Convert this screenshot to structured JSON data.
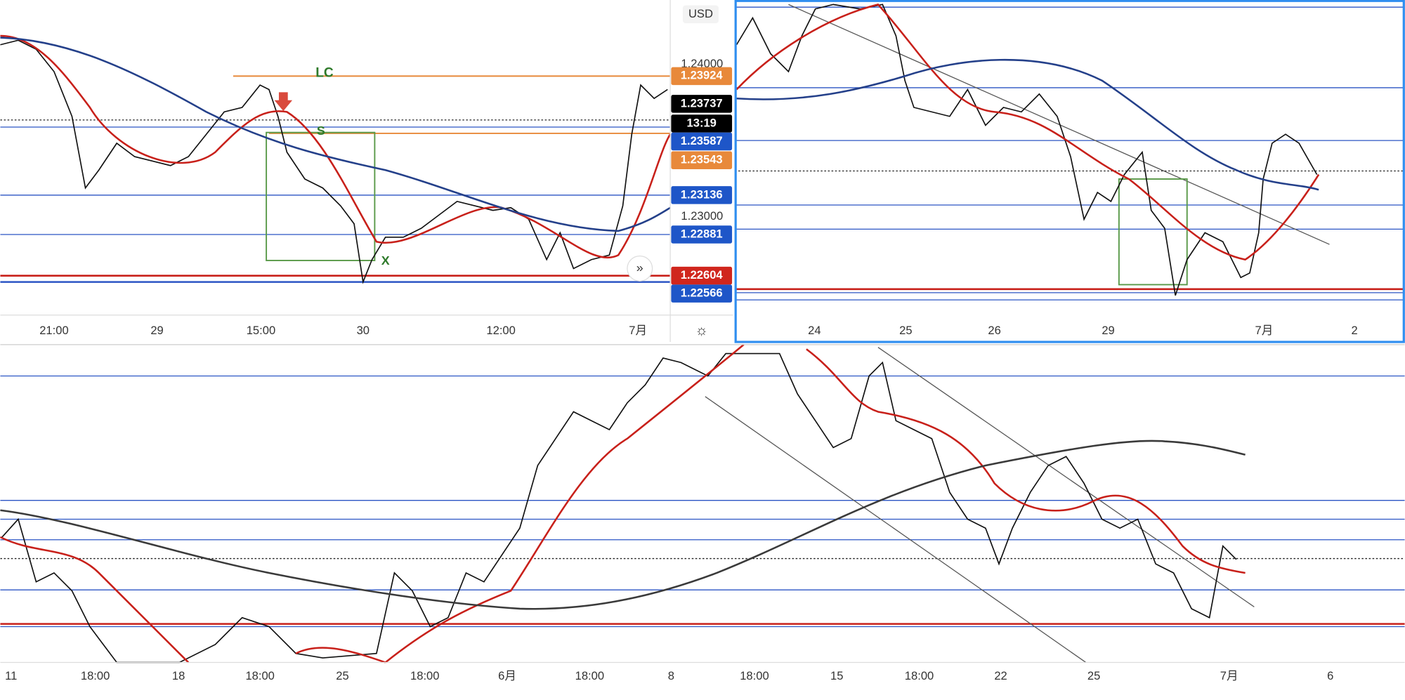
{
  "panels": [
    {
      "price_scale": {
        "currency": "USD",
        "ticks": [
          "1.24000",
          "1.23000"
        ],
        "labels": [
          {
            "text": "1.23924",
            "color": "#e8893a"
          },
          {
            "text": "1.23737",
            "color": "#000000"
          },
          {
            "text": "13:19",
            "color": "#000000"
          },
          {
            "text": "1.23587",
            "color": "#1e56c8"
          },
          {
            "text": "1.23543",
            "color": "#e8893a"
          },
          {
            "text": "1.23136",
            "color": "#1e56c8"
          },
          {
            "text": "1.22881",
            "color": "#1e56c8"
          },
          {
            "text": "1.22604",
            "color": "#d0261d"
          },
          {
            "text": "1.22566",
            "color": "#1e56c8"
          }
        ]
      },
      "annotations": [
        "LC",
        "S",
        "X"
      ],
      "time_axis": [
        "21:00",
        "29",
        "15:00",
        "30",
        "12:00",
        "7月"
      ]
    },
    {
      "time_axis": [
        "24",
        "25",
        "26",
        "29",
        "7月",
        "2"
      ]
    },
    {
      "time_axis": [
        "11",
        "18:00",
        "18",
        "18:00",
        "25",
        "18:00",
        "6月",
        "18:00",
        "8",
        "18:00",
        "15",
        "18:00",
        "22",
        "25",
        "7月",
        "6"
      ]
    }
  ]
}
